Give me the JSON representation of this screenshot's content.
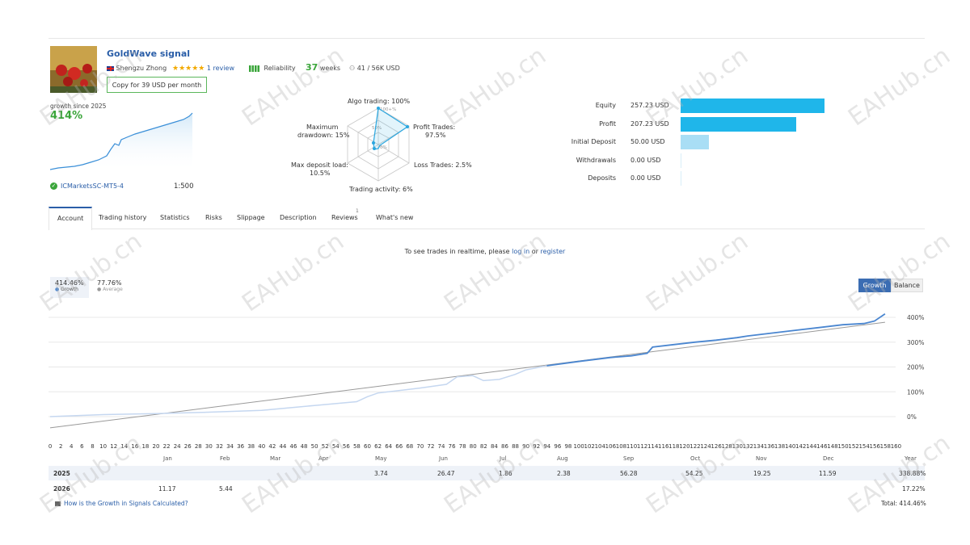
{
  "signal": {
    "title": "GoldWave signal",
    "author": "Shengzu Zhong",
    "stars": "★★★★★",
    "reviews": "1 review",
    "reliability_label": "Reliability",
    "weeks_value": "37",
    "weeks_label": "weeks",
    "subscribers": "41 / 56K USD",
    "copy_button": "Copy for 39 USD per month",
    "growth_since": "growth since 2025",
    "growth_value": "414%",
    "broker": "ICMarketsSC-MT5-4",
    "leverage": "1:500"
  },
  "radar": {
    "algo": "Algo trading: 100%",
    "profit": "Profit Trades:",
    "profit_val": "97.5%",
    "loss": "Loss Trades: 2.5%",
    "activity": "Trading activity: 6%",
    "deposit_load": "Max deposit load:",
    "deposit_load_val": "10.5%",
    "drawdown": "Maximum",
    "drawdown_2": "drawdown: 15%",
    "ring_100": "100+%",
    "ring_50": "50%",
    "ring_0": "0%"
  },
  "financials": [
    {
      "label": "Equity",
      "value": "257.23 USD",
      "amount": 257.23,
      "color": "#1fb6ea"
    },
    {
      "label": "Profit",
      "value": "207.23 USD",
      "amount": 207.23,
      "color": "#1fb6ea"
    },
    {
      "label": "Initial Deposit",
      "value": "50.00 USD",
      "amount": 50.0,
      "color": "#a9def5"
    },
    {
      "label": "Withdrawals",
      "value": "0.00 USD",
      "amount": 0,
      "color": "#a9def5"
    },
    {
      "label": "Deposits",
      "value": "0.00 USD",
      "amount": 0,
      "color": "#a9def5"
    }
  ],
  "tabs": [
    "Account",
    "Trading history",
    "Statistics",
    "Risks",
    "Slippage",
    "Description",
    "Reviews",
    "What's new"
  ],
  "reviews_badge": "1",
  "notice": {
    "prefix": "To see trades in realtime, please ",
    "login": "log in",
    "or": " or ",
    "register": "register"
  },
  "legend": {
    "growth_val": "414.46%",
    "growth_lbl": "Growth",
    "avg_val": "77.76%",
    "avg_lbl": "Average"
  },
  "chart_buttons": {
    "growth": "Growth",
    "balance": "Balance"
  },
  "chart_data": {
    "type": "line",
    "x_ticks": [
      0,
      2,
      4,
      6,
      8,
      10,
      12,
      14,
      16,
      18,
      20,
      22,
      24,
      26,
      28,
      30,
      32,
      34,
      36,
      38,
      40,
      42,
      44,
      46,
      48,
      50,
      52,
      54,
      56,
      58,
      60,
      62,
      64,
      66,
      68,
      70,
      72,
      74,
      76,
      78,
      80,
      82,
      84,
      86,
      88,
      90,
      92,
      94,
      96,
      98,
      100,
      102,
      104,
      106,
      108,
      110,
      112,
      114,
      116,
      118,
      120,
      122,
      124,
      126,
      128,
      130,
      132,
      134,
      136,
      138,
      140,
      142,
      144,
      146,
      148,
      150,
      152,
      154,
      156,
      158,
      160
    ],
    "y_ticks": [
      "0%",
      "100%",
      "200%",
      "300%",
      "400%"
    ],
    "ylim": [
      -50,
      430
    ],
    "xlim": [
      0,
      160
    ],
    "months": [
      "Jan",
      "Feb",
      "Mar",
      "Apr",
      "May",
      "Jun",
      "Jul",
      "Aug",
      "Sep",
      "Oct",
      "Nov",
      "Dec",
      "Year"
    ],
    "series": [
      {
        "name": "Growth",
        "color": "#4a86d0",
        "x": [
          0,
          10,
          20,
          30,
          40,
          50,
          58,
          60,
          62,
          70,
          75,
          77,
          80,
          82,
          85,
          88,
          90,
          94,
          100,
          106,
          110,
          113,
          114,
          118,
          122,
          126,
          130,
          132,
          136,
          140,
          146,
          150,
          154,
          156,
          158
        ],
        "y": [
          0,
          8,
          12,
          18,
          25,
          45,
          60,
          80,
          95,
          115,
          130,
          160,
          165,
          145,
          150,
          170,
          188,
          205,
          222,
          238,
          245,
          255,
          280,
          290,
          300,
          308,
          318,
          325,
          335,
          345,
          360,
          370,
          375,
          385,
          414
        ]
      },
      {
        "name": "Average",
        "x": [
          0,
          158
        ],
        "y": [
          -45,
          380
        ],
        "color": "#999999"
      }
    ]
  },
  "monthly": {
    "2025": {
      "label": "2025",
      "May": "3.74",
      "Jun": "26.47",
      "Jul": "1.86",
      "Aug": "2.38",
      "Sep": "56.28",
      "Oct": "54.25",
      "Nov": "19.25",
      "Dec": "11.59",
      "Year": "338.88%"
    },
    "2026": {
      "label": "2026",
      "Jan": "11.17",
      "Feb": "5.44",
      "Year": "17.22%"
    }
  },
  "footer": {
    "link": "How is the Growth in Signals Calculated?",
    "total": "Total: 414.46%"
  },
  "watermark": "EAHub.cn"
}
